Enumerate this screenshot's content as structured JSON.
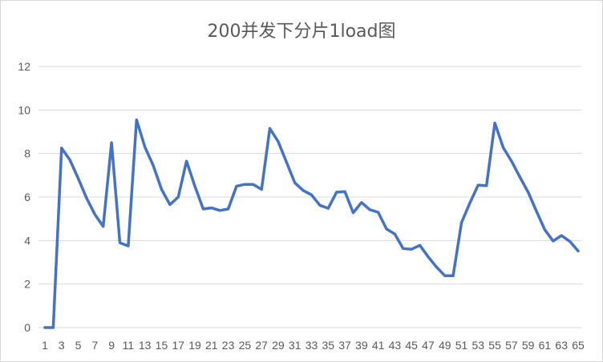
{
  "chart_data": {
    "type": "line",
    "title": "200并发下分片1load图",
    "xlabel": "",
    "ylabel": "",
    "x": [
      1,
      2,
      3,
      4,
      5,
      6,
      7,
      8,
      9,
      10,
      11,
      12,
      13,
      14,
      15,
      16,
      17,
      18,
      19,
      20,
      21,
      22,
      23,
      24,
      25,
      26,
      27,
      28,
      29,
      30,
      31,
      32,
      33,
      34,
      35,
      36,
      37,
      38,
      39,
      40,
      41,
      42,
      43,
      44,
      45,
      46,
      47,
      48,
      49,
      50,
      51,
      52,
      53,
      54,
      55,
      56,
      57,
      58,
      59,
      60,
      61,
      62,
      63,
      64,
      65
    ],
    "x_tick_labels": [
      "1",
      "3",
      "5",
      "7",
      "9",
      "11",
      "13",
      "15",
      "17",
      "19",
      "21",
      "23",
      "25",
      "27",
      "29",
      "31",
      "33",
      "35",
      "37",
      "39",
      "41",
      "43",
      "45",
      "47",
      "49",
      "51",
      "53",
      "55",
      "57",
      "59",
      "61",
      "63",
      "65"
    ],
    "y_ticks": [
      "0",
      "2",
      "4",
      "6",
      "8",
      "10",
      "12"
    ],
    "ylim": [
      0,
      12
    ],
    "grid": true,
    "legend": "none",
    "series": [
      {
        "color": "#4472c4",
        "values": [
          0,
          0,
          8.25,
          7.7,
          6.85,
          5.95,
          5.2,
          4.65,
          8.5,
          3.9,
          3.75,
          9.55,
          8.3,
          7.45,
          6.35,
          5.65,
          6.0,
          7.65,
          6.5,
          5.45,
          5.5,
          5.38,
          5.45,
          6.5,
          6.58,
          6.58,
          6.35,
          9.15,
          8.55,
          7.6,
          6.65,
          6.3,
          6.1,
          5.62,
          5.48,
          6.22,
          6.25,
          5.28,
          5.75,
          5.42,
          5.3,
          4.53,
          4.3,
          3.63,
          3.6,
          3.78,
          3.25,
          2.78,
          2.38,
          2.38,
          4.82,
          5.72,
          6.55,
          6.52,
          9.4,
          8.28,
          7.65,
          6.92,
          6.22,
          5.35,
          4.5,
          3.98,
          4.23,
          3.96,
          3.52
        ]
      }
    ]
  }
}
